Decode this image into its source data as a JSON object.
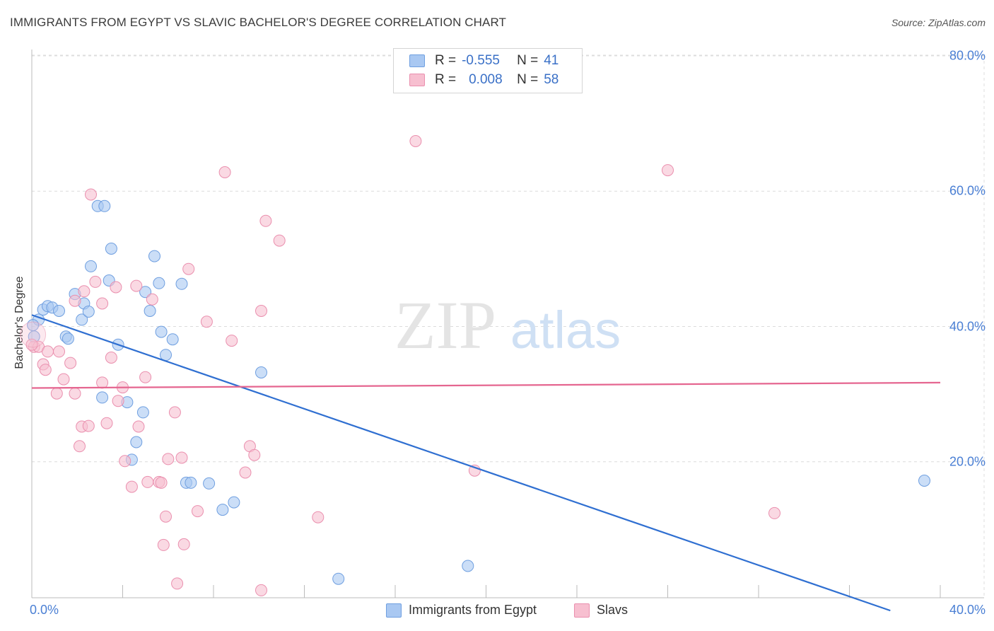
{
  "title": "IMMIGRANTS FROM EGYPT VS SLAVIC BACHELOR'S DEGREE CORRELATION CHART",
  "source": "Source: ZipAtlas.com",
  "watermark": {
    "zip": "ZIP",
    "atlas": "atlas"
  },
  "legend": {
    "rows": [
      {
        "r_label": "R =",
        "r_value": "-0.555",
        "n_label": "N =",
        "n_value": "41"
      },
      {
        "r_label": "R =",
        "r_value": "0.008",
        "n_label": "N =",
        "n_value": "58"
      }
    ]
  },
  "colors": {
    "egypt_fill": "#a9c8f2",
    "egypt_stroke": "#6f9fe0",
    "egypt_line": "#2f6fd1",
    "slavs_fill": "#f7bfd0",
    "slavs_stroke": "#ea8fae",
    "slavs_line": "#e56690",
    "tick_text": "#4a7fd4",
    "grid": "#dcdcdc"
  },
  "chart_data": {
    "type": "scatter",
    "xlabel": "",
    "ylabel": "Bachelor's Degree",
    "xlim": [
      0,
      40
    ],
    "ylim": [
      0,
      80
    ],
    "x_tick_labels": [
      "0.0%",
      "40.0%"
    ],
    "y_tick_labels": [
      "80.0%",
      "60.0%",
      "40.0%",
      "20.0%"
    ],
    "y_ticks": [
      80,
      60,
      40,
      20
    ],
    "series": [
      {
        "name": "Immigrants from Egypt",
        "r": -0.555,
        "n": 41,
        "trend": {
          "x": [
            0.0,
            37.8
          ],
          "y": [
            41.7,
            -2.0
          ]
        },
        "points": [
          [
            0.1,
            38.5
          ],
          [
            0.3,
            41.0
          ],
          [
            0.5,
            42.5
          ],
          [
            0.7,
            43.0
          ],
          [
            0.9,
            42.8
          ],
          [
            1.2,
            42.3
          ],
          [
            1.5,
            38.5
          ],
          [
            1.6,
            38.2
          ],
          [
            1.9,
            44.8
          ],
          [
            2.2,
            41.0
          ],
          [
            2.3,
            43.4
          ],
          [
            2.5,
            42.2
          ],
          [
            2.6,
            48.9
          ],
          [
            2.9,
            57.8
          ],
          [
            3.2,
            57.8
          ],
          [
            3.4,
            46.8
          ],
          [
            3.5,
            51.5
          ],
          [
            3.8,
            37.3
          ],
          [
            3.1,
            29.5
          ],
          [
            4.2,
            28.8
          ],
          [
            4.4,
            20.3
          ],
          [
            4.6,
            22.9
          ],
          [
            4.9,
            27.3
          ],
          [
            5.0,
            45.1
          ],
          [
            5.2,
            42.3
          ],
          [
            5.4,
            50.4
          ],
          [
            5.6,
            46.4
          ],
          [
            5.7,
            39.2
          ],
          [
            5.9,
            35.8
          ],
          [
            6.2,
            38.1
          ],
          [
            6.6,
            46.3
          ],
          [
            6.8,
            16.9
          ],
          [
            7.0,
            16.9
          ],
          [
            7.8,
            16.8
          ],
          [
            8.4,
            12.9
          ],
          [
            8.9,
            14.0
          ],
          [
            10.1,
            33.2
          ],
          [
            13.5,
            2.7
          ],
          [
            19.2,
            4.6
          ],
          [
            39.3,
            17.2
          ],
          [
            0.05,
            40.2
          ]
        ]
      },
      {
        "name": "Slavs",
        "r": 0.008,
        "n": 58,
        "trend": {
          "x": [
            0.0,
            40.0
          ],
          "y": [
            30.9,
            31.7
          ]
        },
        "points": [
          [
            0.1,
            37.0
          ],
          [
            0.3,
            37.0
          ],
          [
            0.5,
            34.4
          ],
          [
            0.7,
            36.3
          ],
          [
            1.1,
            30.1
          ],
          [
            1.2,
            36.3
          ],
          [
            1.4,
            32.2
          ],
          [
            1.7,
            34.6
          ],
          [
            1.9,
            30.1
          ],
          [
            2.1,
            22.3
          ],
          [
            2.2,
            25.2
          ],
          [
            2.3,
            45.2
          ],
          [
            2.5,
            25.3
          ],
          [
            2.6,
            59.5
          ],
          [
            2.8,
            46.6
          ],
          [
            3.1,
            43.4
          ],
          [
            3.1,
            31.7
          ],
          [
            3.3,
            25.7
          ],
          [
            3.5,
            35.4
          ],
          [
            3.7,
            45.8
          ],
          [
            3.8,
            29.0
          ],
          [
            4.0,
            31.0
          ],
          [
            4.1,
            20.1
          ],
          [
            4.4,
            16.3
          ],
          [
            4.6,
            46.0
          ],
          [
            4.7,
            25.2
          ],
          [
            5.0,
            32.5
          ],
          [
            5.1,
            17.0
          ],
          [
            5.3,
            44.0
          ],
          [
            5.6,
            17.0
          ],
          [
            5.7,
            16.9
          ],
          [
            5.8,
            7.7
          ],
          [
            5.9,
            11.9
          ],
          [
            6.0,
            20.4
          ],
          [
            6.3,
            27.3
          ],
          [
            6.4,
            2.0
          ],
          [
            6.6,
            20.6
          ],
          [
            6.7,
            7.8
          ],
          [
            6.9,
            48.5
          ],
          [
            7.3,
            12.7
          ],
          [
            7.7,
            40.7
          ],
          [
            8.5,
            62.8
          ],
          [
            8.8,
            37.9
          ],
          [
            9.4,
            18.4
          ],
          [
            9.6,
            22.3
          ],
          [
            9.8,
            21.0
          ],
          [
            10.1,
            1.0
          ],
          [
            10.1,
            42.3
          ],
          [
            10.3,
            55.6
          ],
          [
            10.9,
            52.7
          ],
          [
            12.6,
            11.8
          ],
          [
            16.9,
            67.4
          ],
          [
            19.5,
            18.7
          ],
          [
            28.0,
            63.1
          ],
          [
            32.7,
            12.4
          ],
          [
            0.6,
            33.6
          ],
          [
            1.9,
            43.8
          ],
          [
            0.0,
            37.3
          ]
        ]
      }
    ]
  },
  "bottom_legend": [
    {
      "label": "Immigrants from Egypt"
    },
    {
      "label": "Slavs"
    }
  ]
}
